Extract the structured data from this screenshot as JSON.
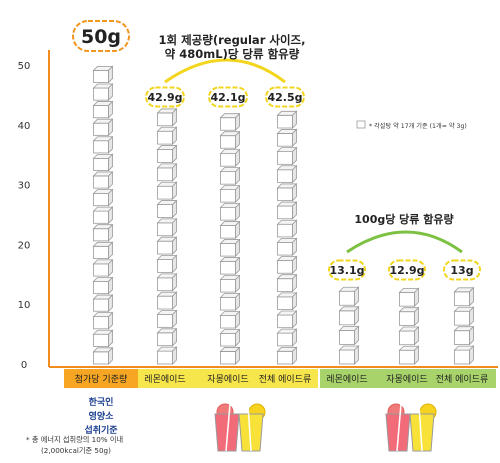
{
  "chart_data": {
    "type": "bar",
    "unit_note": "* 각설탕 약 17개 기준 (1개= 약 3g)",
    "ylim": [
      0,
      50
    ],
    "yticks": [
      0,
      10,
      20,
      30,
      40,
      50
    ],
    "reference": {
      "value": 50,
      "value_label": "50g",
      "category": "첨가당 기준량",
      "description": [
        "한국인",
        "영양소",
        "섭취기준"
      ],
      "footnote": [
        "* 총 에너지 섭취량의 10% 이내",
        "(2,000kcal기준 50g)"
      ]
    },
    "groups": [
      {
        "title": [
          "1회 제공량(regular 사이즈,",
          "약 480mL)당 당류 함유량"
        ],
        "categories": [
          "레몬에이드",
          "자몽에이드",
          "전체 에이드류"
        ],
        "values": [
          42.9,
          42.1,
          42.5
        ],
        "value_labels": [
          "42.9g",
          "42.1g",
          "42.5g"
        ]
      },
      {
        "title": [
          "100g당 당류 함유량"
        ],
        "categories": [
          "레몬에이드",
          "자몽에이드",
          "전체 에이드류"
        ],
        "values": [
          13.1,
          12.9,
          13
        ],
        "value_labels": [
          "13.1g",
          "12.9g",
          "13g"
        ]
      }
    ],
    "colors": {
      "axis": "#f08c1e",
      "reference_band": "#f6a623",
      "group1_band": "#f7e64b",
      "group1_arc": "#f2d51c",
      "group2_band": "#a7d36a",
      "group2_arc": "#7cc142",
      "label_border": "#f2d51c",
      "reference_border": "#f0961e",
      "description_text": "#1d3f8f",
      "cube_stroke": "#9a9a9a"
    }
  }
}
